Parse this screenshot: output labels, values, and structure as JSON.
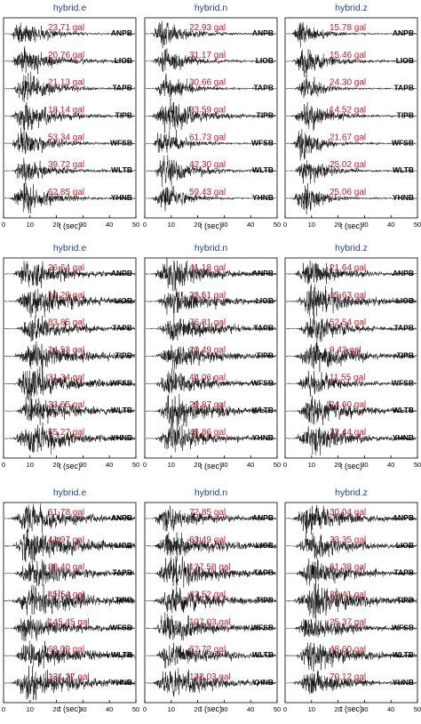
{
  "colors": {
    "title": "#1f3fa0",
    "pga": "#d0182a",
    "trace": "#000000",
    "frame": "#000000"
  },
  "chart_data": {
    "type": "line",
    "description_of_axes": "waveform panels",
    "xlabel": "t (sec)",
    "xlim": [
      0,
      50
    ],
    "xticks": [
      "0",
      "10",
      "20",
      "30",
      "40",
      "50"
    ],
    "stations": [
      "ANPB",
      "LIOB",
      "TAPB",
      "TIPB",
      "WFSB",
      "WLTB",
      "YHNB"
    ],
    "component_titles": [
      "hybrid.e",
      "hybrid.n",
      "hybrid.z"
    ],
    "unit_suffix": " gal",
    "groups": [
      {
        "panels": [
          {
            "title": "hybrid.e",
            "pga": [
              "23.71 gal",
              "20.76 gal",
              "21.13 gal",
              "18.14 gal",
              "53.34 gal",
              "39.72 gal",
              "62.85 gal"
            ]
          },
          {
            "title": "hybrid.n",
            "pga": [
              "22.93 gal",
              "31.17 gal",
              "30.66 gal",
              "23.59 gal",
              "61.73 gal",
              "42.30 gal",
              "59.43 gal"
            ]
          },
          {
            "title": "hybrid.z",
            "pga": [
              "15.78 gal",
              "15.46 gal",
              "24.30 gal",
              "14.52 gal",
              "21.67 gal",
              "25.02 gal",
              "25.06 gal"
            ]
          }
        ]
      },
      {
        "panels": [
          {
            "title": "hybrid.e",
            "pga": [
              "26.64 gal",
              "19.26 gal",
              "83.85 gal",
              "14.53 gal",
              "31.34 gal",
              "33.65 gal",
              "55.27 gal"
            ]
          },
          {
            "title": "hybrid.n",
            "pga": [
              "41.18 gal",
              "23.51 gal",
              "76.81 gal",
              "20.49 gal",
              "44.06 gal",
              "29.87 gal",
              "45.86 gal"
            ]
          },
          {
            "title": "hybrid.z",
            "pga": [
              "21.64 gal",
              "15.63 gal",
              "52.54 gal",
              "9.43 gal",
              "11.55 gal",
              "24.60 gal",
              "22.44 gal"
            ]
          }
        ]
      },
      {
        "panels": [
          {
            "title": "hybrid.e",
            "pga": [
              "61.78 gal",
              "41.97 gal",
              "88.40 gal",
              "45.54 gal",
              "145.45 gal",
              "68.09 gal",
              "131.37 gal"
            ]
          },
          {
            "title": "hybrid.n",
            "pga": [
              "72.85 gal",
              "63.49 gal",
              "127.58 gal",
              "62.52 gal",
              "107.03 gal",
              "62.72 gal",
              "132.03 gal"
            ]
          },
          {
            "title": "hybrid.z",
            "pga": [
              "30.04 gal",
              "33.35 gal",
              "61.38 gal",
              "30.41 gal",
              "25.37 gal",
              "48.60 gal",
              "70.12 gal"
            ]
          }
        ]
      }
    ]
  }
}
